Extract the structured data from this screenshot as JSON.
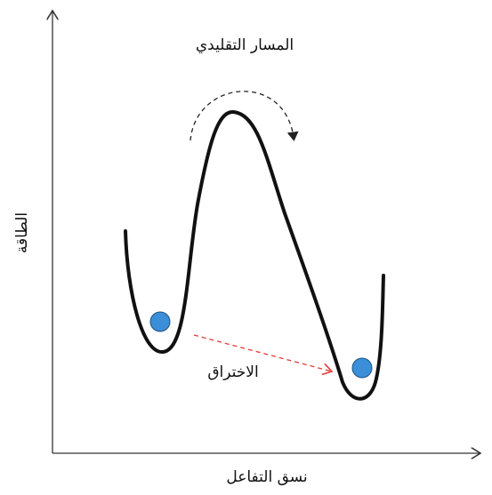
{
  "labels": {
    "classical_path": "المسار التقليدي",
    "tunneling": "الاختراق",
    "y_axis": "الطاقة",
    "x_axis": "نسق التفاعل"
  }
}
